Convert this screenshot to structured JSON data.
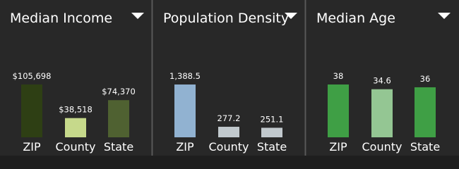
{
  "chart_data": [
    {
      "type": "bar",
      "title": "Median Income",
      "categories": [
        "ZIP",
        "County",
        "State"
      ],
      "values": [
        105698,
        38518,
        74370
      ],
      "value_labels": [
        "$105,698",
        "$38,518",
        "$74,370"
      ],
      "colors": [
        "#2e3f14",
        "#c6d98b",
        "#4f6131"
      ]
    },
    {
      "type": "bar",
      "title": "Population Density",
      "categories": [
        "ZIP",
        "County",
        "State"
      ],
      "values": [
        1388.5,
        277.2,
        251.1
      ],
      "value_labels": [
        "1,388.5",
        "277.2",
        "251.1"
      ],
      "colors": [
        "#91b2d1",
        "#c1c9cd",
        "#c1c9cd"
      ]
    },
    {
      "type": "bar",
      "title": "Median Age",
      "categories": [
        "ZIP",
        "County",
        "State"
      ],
      "values": [
        38,
        34.6,
        36
      ],
      "colors": [
        "#3f9f45",
        "#94c693",
        "#3f9f45"
      ]
    }
  ]
}
